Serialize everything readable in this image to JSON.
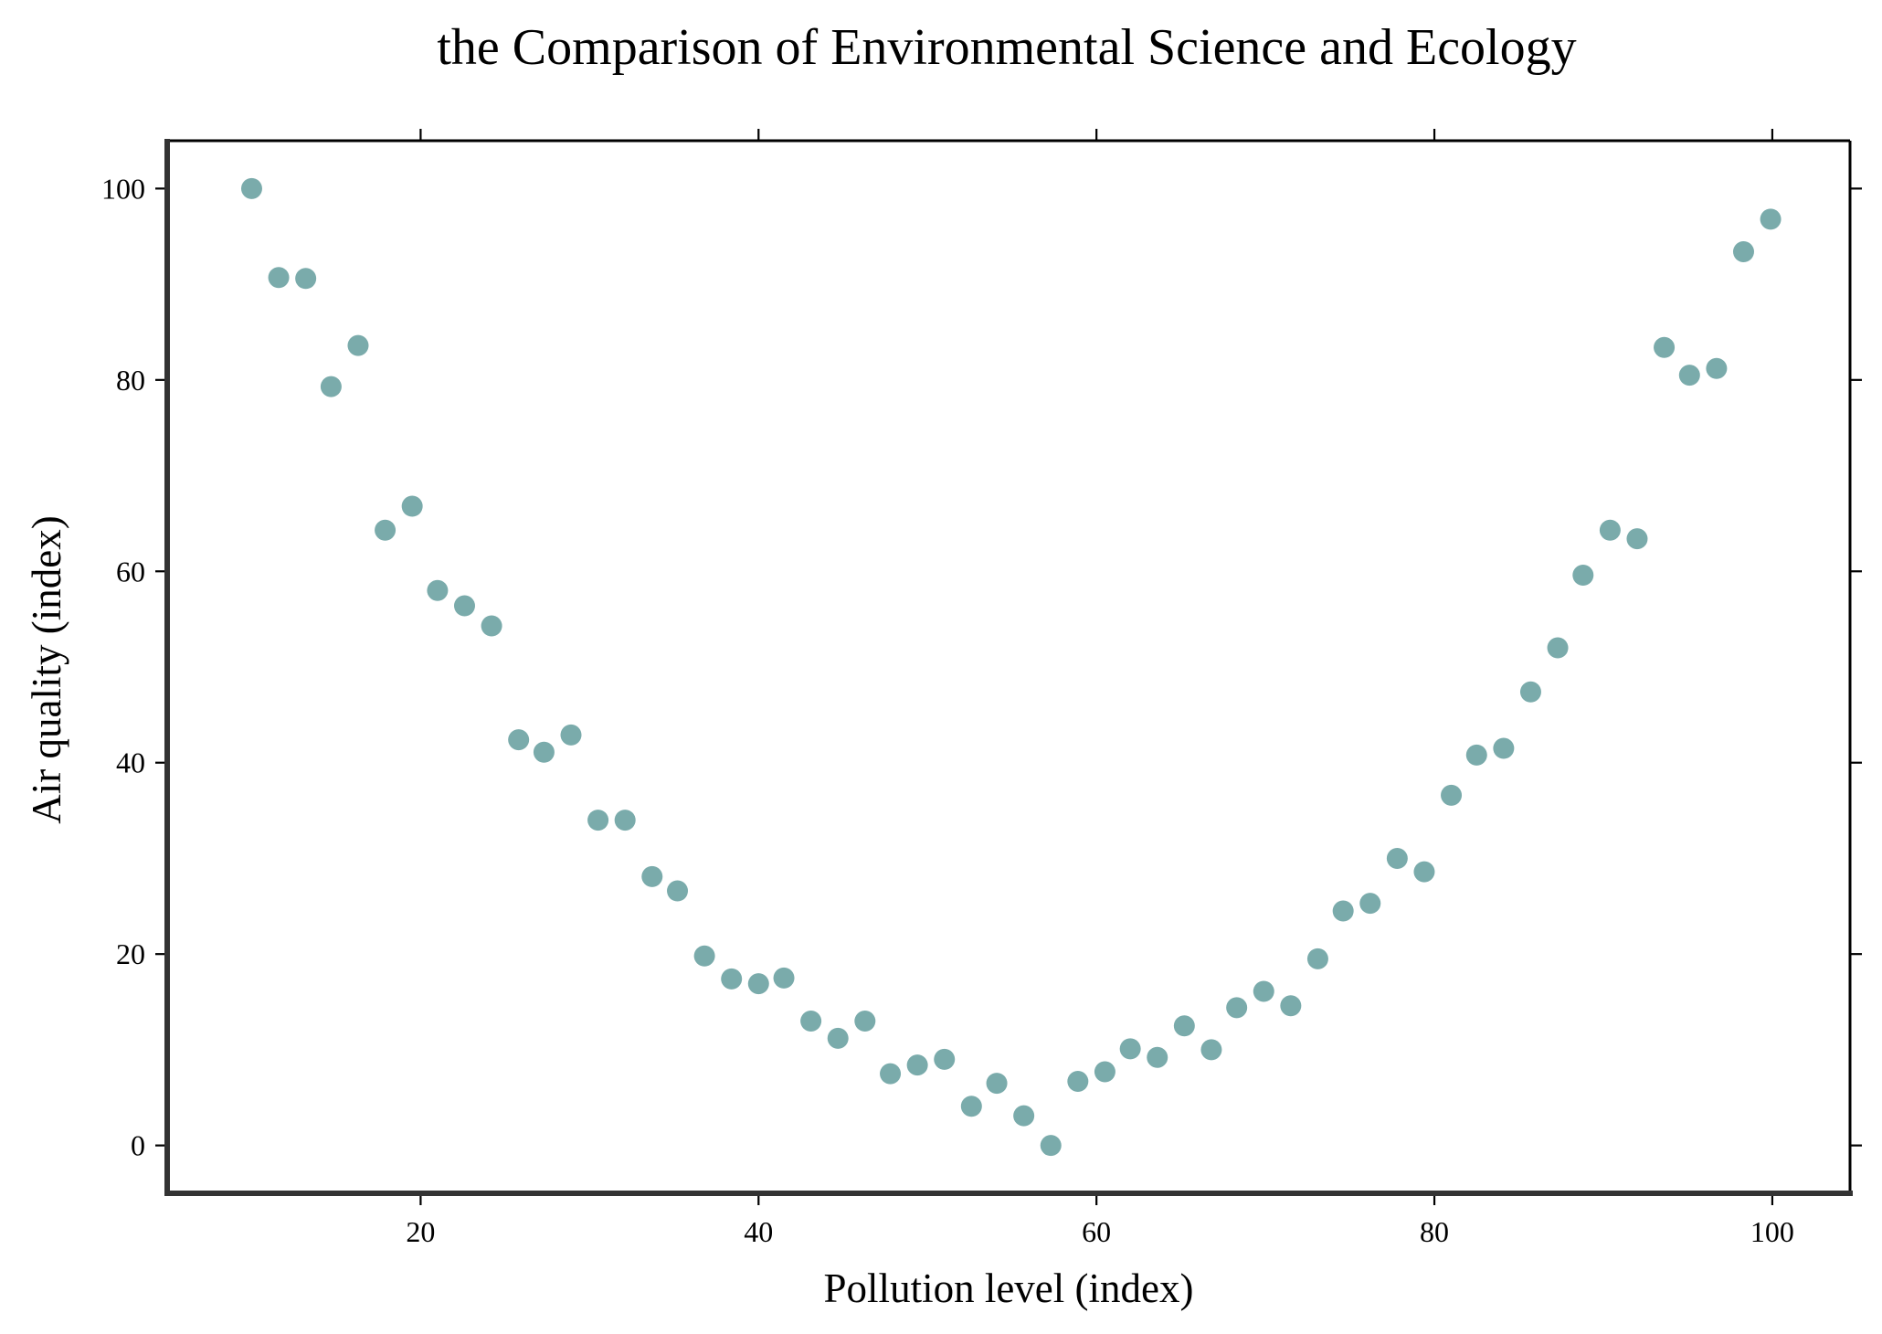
{
  "chart_data": {
    "type": "scatter",
    "title": "the Comparison of Environmental Science and Ecology",
    "xlabel": "Pollution level (index)",
    "ylabel": "Air quality (index)",
    "xlim": [
      5,
      104.6
    ],
    "ylim": [
      -5,
      105
    ],
    "xticks": [
      20,
      40,
      60,
      80,
      100
    ],
    "yticks": [
      0,
      20,
      40,
      60,
      80,
      100
    ],
    "grid": false,
    "marker_color": "#7aabab",
    "series": [
      {
        "x": [
          10.0,
          11.6,
          13.2,
          14.7,
          16.3,
          17.9,
          19.5,
          21.0,
          22.6,
          24.2,
          25.8,
          27.3,
          28.9,
          30.5,
          32.1,
          33.7,
          35.2,
          36.8,
          38.4,
          40.0,
          41.5,
          43.1,
          44.7,
          46.3,
          47.8,
          49.4,
          51.0,
          52.6,
          54.1,
          55.7,
          57.3,
          58.9,
          60.5,
          62.0,
          63.6,
          65.2,
          66.8,
          68.3,
          69.9,
          71.5,
          73.1,
          74.6,
          76.2,
          77.8,
          79.4,
          81.0,
          82.5,
          84.1,
          85.7,
          87.3,
          88.8,
          90.4,
          92.0,
          93.6,
          95.1,
          96.7,
          98.3,
          99.9
        ],
        "y": [
          100.0,
          90.7,
          90.6,
          79.3,
          83.6,
          64.3,
          66.8,
          58.0,
          56.4,
          54.3,
          42.4,
          41.1,
          42.9,
          34.0,
          34.0,
          28.1,
          26.6,
          19.8,
          17.4,
          16.9,
          17.5,
          13.0,
          11.2,
          13.0,
          7.5,
          8.4,
          9.0,
          4.1,
          6.5,
          3.1,
          0.0,
          6.7,
          7.7,
          10.1,
          9.2,
          12.5,
          10.0,
          14.4,
          16.1,
          14.6,
          19.5,
          24.5,
          25.3,
          30.0,
          28.6,
          36.6,
          40.8,
          41.5,
          47.4,
          52.0,
          59.6,
          64.3,
          63.4,
          83.4,
          80.5,
          81.2,
          93.4,
          96.8
        ]
      }
    ]
  }
}
